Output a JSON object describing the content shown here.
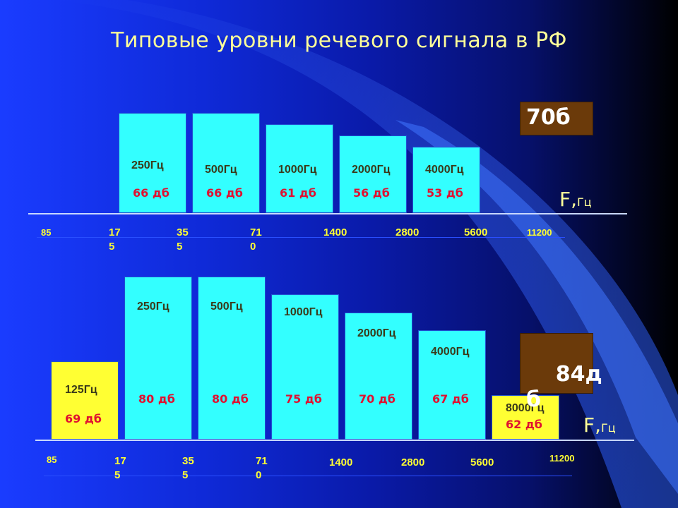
{
  "title": "Типовые уровни речевого сигнала в РФ",
  "colors": {
    "bar_cyan": "#33ffff",
    "bar_yellow": "#ffff33",
    "db_label": "#e01030",
    "freq_label": "#3a3a1a",
    "tick_label": "#ffff33",
    "level_box": "#6b3a0a"
  },
  "chart_data": [
    {
      "type": "bar",
      "level_label": "70б",
      "axis_unit_main": "F,",
      "axis_unit_sub": "Гц",
      "axis_ticks": [
        "85",
        "17\n5",
        "35\n5",
        "71\n0",
        "1400",
        "2800",
        "5600",
        "11200"
      ],
      "bars": [
        {
          "freq": "250Гц",
          "db": "66 дб",
          "value": 66,
          "color": "cyan"
        },
        {
          "freq": "500Гц",
          "db": "66 дб",
          "value": 66,
          "color": "cyan"
        },
        {
          "freq": "1000Гц",
          "db": "61 дб",
          "value": 61,
          "color": "cyan"
        },
        {
          "freq": "2000Гц",
          "db": "56 дб",
          "value": 56,
          "color": "cyan"
        },
        {
          "freq": "4000Гц",
          "db": "53 дб",
          "value": 53,
          "color": "cyan"
        }
      ]
    },
    {
      "type": "bar",
      "level_label": "84д\nб",
      "axis_unit_main": "F,",
      "axis_unit_sub": "Гц",
      "axis_ticks": [
        "85",
        "17\n5",
        "35\n5",
        "71\n0",
        "1400",
        "2800",
        "5600",
        "11200"
      ],
      "bars": [
        {
          "freq": "125Гц",
          "db": "69 дб",
          "value": 69,
          "color": "yellow"
        },
        {
          "freq": "250Гц",
          "db": "80 дб",
          "value": 80,
          "color": "cyan"
        },
        {
          "freq": "500Гц",
          "db": "80 дб",
          "value": 80,
          "color": "cyan"
        },
        {
          "freq": "1000Гц",
          "db": "75 дб",
          "value": 75,
          "color": "cyan"
        },
        {
          "freq": "2000Гц",
          "db": "70 дб",
          "value": 70,
          "color": "cyan"
        },
        {
          "freq": "4000Гц",
          "db": "67 дб",
          "value": 67,
          "color": "cyan"
        },
        {
          "freq": "8000Гц",
          "db": "62 дб",
          "value": 62,
          "color": "yellow"
        }
      ]
    }
  ]
}
